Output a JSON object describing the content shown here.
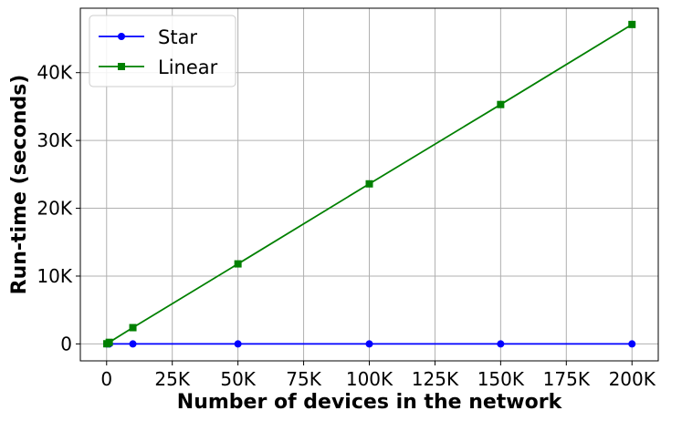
{
  "chart_data": {
    "type": "line",
    "xlabel": "Number of devices in the network",
    "ylabel": "Run-time (seconds)",
    "xlim": [
      -10000,
      210000
    ],
    "ylim": [
      -2500,
      49500
    ],
    "x_ticks": [
      0,
      25000,
      50000,
      75000,
      100000,
      125000,
      150000,
      175000,
      200000
    ],
    "x_tick_labels": [
      "0",
      "25K",
      "50K",
      "75K",
      "100K",
      "125K",
      "150K",
      "175K",
      "200K"
    ],
    "y_ticks": [
      0,
      10000,
      20000,
      30000,
      40000
    ],
    "y_tick_labels": [
      "0",
      "10K",
      "20K",
      "30K",
      "40K"
    ],
    "grid": true,
    "legend_position": "top-left",
    "series": [
      {
        "name": "Star",
        "color": "#0000ff",
        "marker": "circle",
        "x": [
          100,
          1000,
          10000,
          50000,
          100000,
          150000,
          200000
        ],
        "y": [
          0,
          0,
          0,
          0,
          0,
          0,
          0
        ]
      },
      {
        "name": "Linear",
        "color": "#008000",
        "marker": "square",
        "x": [
          100,
          1000,
          10000,
          50000,
          100000,
          150000,
          200000
        ],
        "y": [
          20,
          230,
          2400,
          11800,
          23600,
          35300,
          47100
        ]
      }
    ]
  }
}
